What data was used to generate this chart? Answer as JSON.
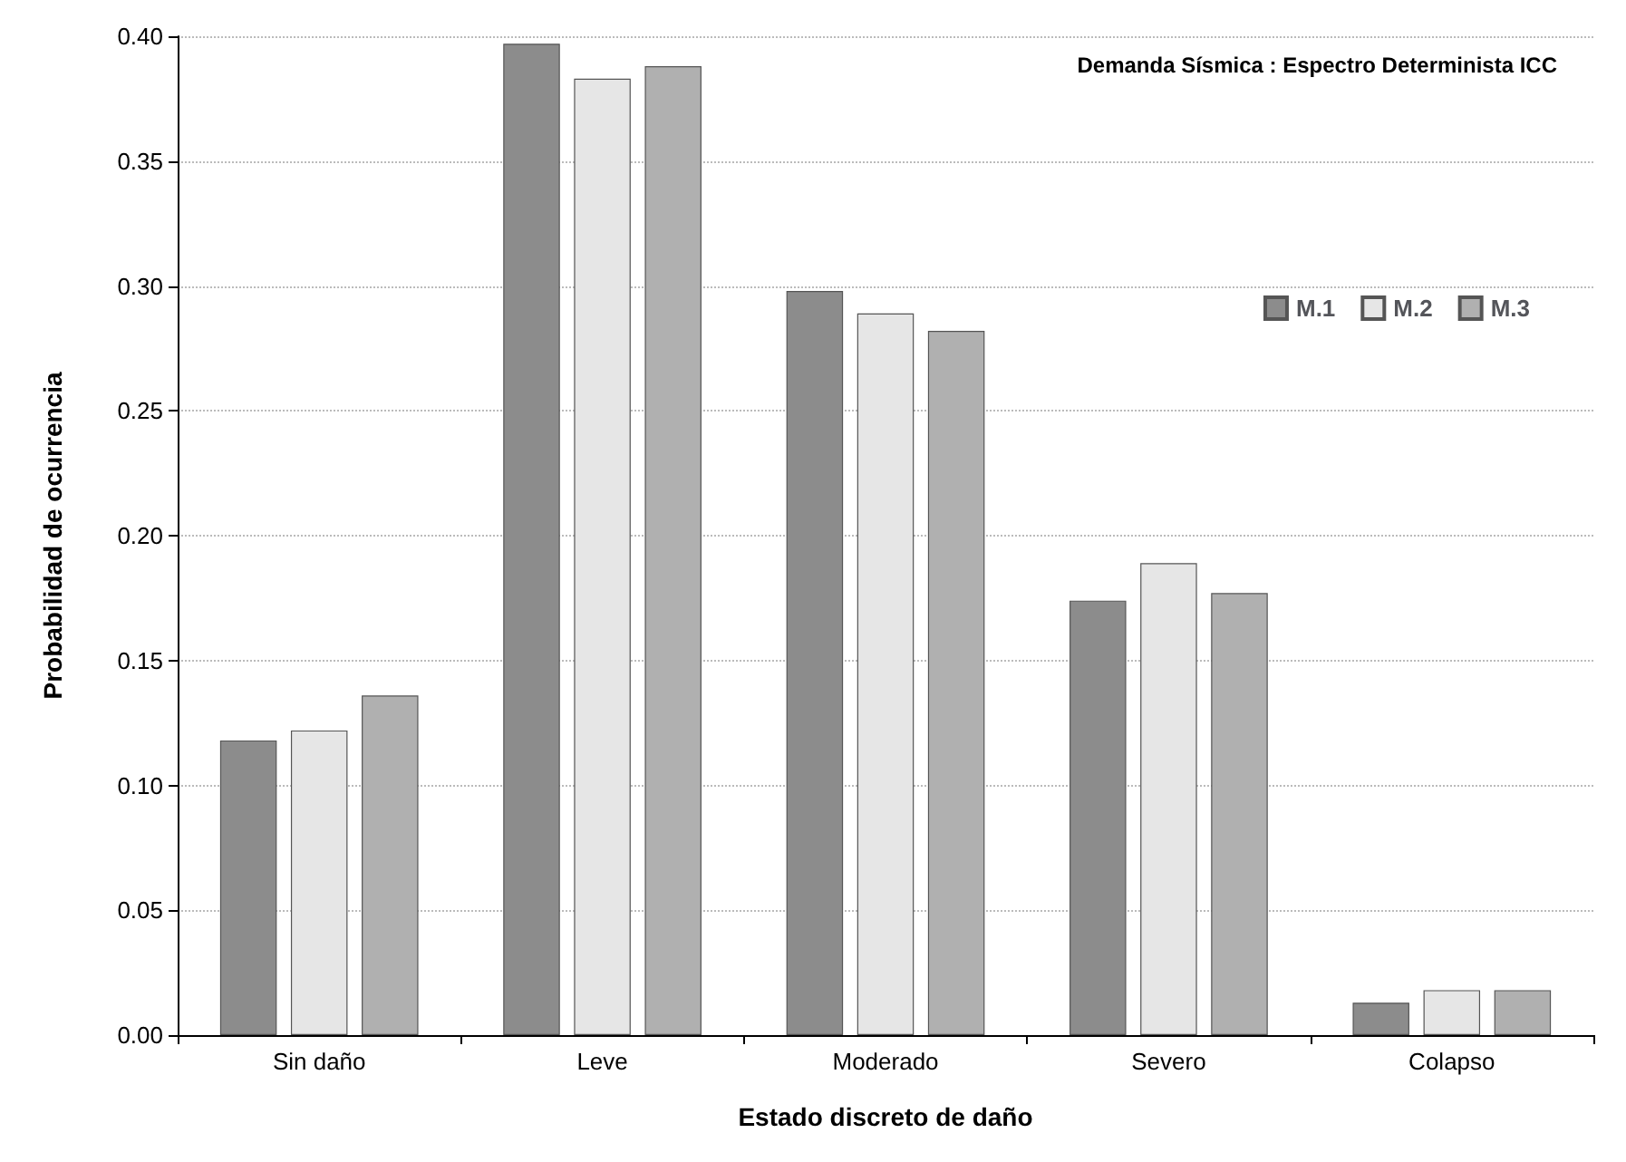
{
  "chart_data": {
    "type": "bar",
    "xlabel": "Estado discreto de daño",
    "ylabel": "Probabilidad de ocurrencia",
    "categories": [
      "Sin daño",
      "Leve",
      "Moderado",
      "Severo",
      "Colapso"
    ],
    "series": [
      {
        "name": "M.1",
        "color": "#8c8c8c",
        "values": [
          0.118,
          0.397,
          0.298,
          0.174,
          0.013
        ]
      },
      {
        "name": "M.2",
        "color": "#e6e6e6",
        "values": [
          0.122,
          0.383,
          0.289,
          0.189,
          0.018
        ]
      },
      {
        "name": "M.3",
        "color": "#b0b0b0",
        "values": [
          0.136,
          0.388,
          0.282,
          0.177,
          0.018
        ]
      }
    ],
    "ylim": [
      0,
      0.4
    ],
    "yticks": [
      {
        "value": 0,
        "label": "0.00"
      },
      {
        "value": 0.05,
        "label": "0.05"
      },
      {
        "value": 0.1,
        "label": "0.10"
      },
      {
        "value": 0.15,
        "label": "0.15"
      },
      {
        "value": 0.2,
        "label": "0.20"
      },
      {
        "value": 0.25,
        "label": "0.25"
      },
      {
        "value": 0.3,
        "label": "0.30"
      },
      {
        "value": 0.35,
        "label": "0.35"
      },
      {
        "value": 0.4,
        "label": "0.40"
      }
    ],
    "grid": "y",
    "legend": "top right",
    "annotations": [
      "Demanda Sísmica : Espectro Determinista ICC"
    ]
  }
}
